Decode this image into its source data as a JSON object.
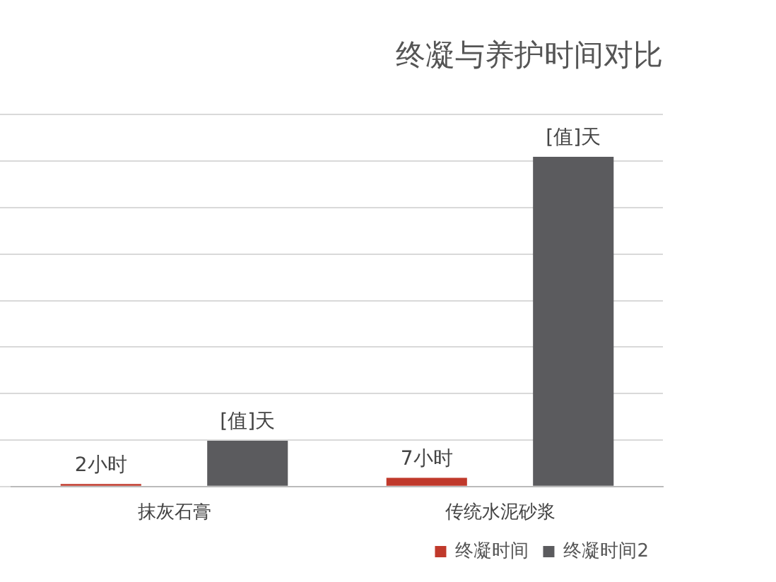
{
  "chart_data": {
    "type": "bar",
    "title": "终凝与养护时间对比",
    "categories": [
      "抹灰石膏",
      "传统水泥砂浆"
    ],
    "grid": "y",
    "legend": "bottom right",
    "tick_labels": "x",
    "series": [
      {
        "name": "终凝时间",
        "color": "#c0392b",
        "values": [
          2,
          7
        ],
        "value_labels": [
          "2小时",
          "7小时"
        ]
      },
      {
        "name": "终凝时间2",
        "color": "#5b5b5e",
        "values": [
          37,
          266
        ],
        "value_labels": [
          "[值]天",
          "[值]天"
        ]
      }
    ]
  }
}
